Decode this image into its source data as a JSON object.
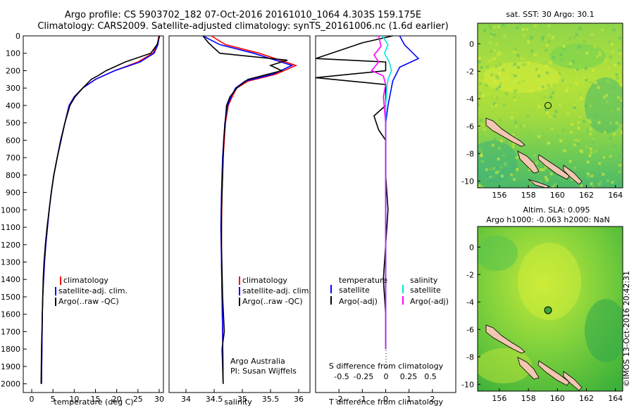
{
  "header": {
    "line1": "Argo profile: CS 5903702_182 07-Oct-2016 20161010_1064 4.303S 159.175E",
    "line2": "Climatology: CARS2009. Satellite-adjusted climatology: synTS_20161006.nc (1.6d earlier)"
  },
  "colors": {
    "climatology": "#ff0000",
    "satellite": "#0000ff",
    "argo": "#000000",
    "salinity_satellite": "#00e5e5",
    "salinity_argo": "#ff00ff"
  },
  "legend_ts": [
    "climatology",
    "satellite-adj. clim.",
    "Argo(..raw -QC)"
  ],
  "legend_diff": {
    "temperature_head": "temperature",
    "salinity_head": "salinity",
    "satellite": "satellite",
    "argo": "Argo(-adj)"
  },
  "credits": {
    "line1": "Argo Australia",
    "line2": "PI: Susan Wijffels"
  },
  "diff_top_label": "S difference from climatology",
  "diff_top_ticks": [
    "-0.5",
    "-0.25",
    "0",
    "0.25",
    "0.5"
  ],
  "map_sst": {
    "title": "sat. SST: 30 Argo: 30.1"
  },
  "map_sla": {
    "title_line1": "Altim. SLA: 0.095",
    "title_line2": "Argo h1000: -0.063 h2000: NaN"
  },
  "imos": "©IMOS 13-Oct-2016 20:42:31",
  "chart_data": [
    {
      "type": "line",
      "xlabel": "temperature (deg C)",
      "ylabel": "",
      "xlim": [
        -2,
        31
      ],
      "ylim": [
        2050,
        0
      ],
      "xticks": [
        0,
        5,
        10,
        15,
        20,
        25,
        30
      ],
      "yticks": [
        0,
        100,
        200,
        300,
        400,
        500,
        600,
        700,
        800,
        900,
        1000,
        1100,
        1200,
        1300,
        1400,
        1500,
        1600,
        1700,
        1800,
        1900,
        2000
      ],
      "series": [
        {
          "name": "climatology",
          "x": [
            29.9,
            29.6,
            28.5,
            25.0,
            19.5,
            15.0,
            12.0,
            10.0,
            8.8,
            7.8,
            6.8,
            6.0,
            5.2,
            4.6,
            4.1,
            3.7,
            3.3,
            3.0,
            2.8,
            2.6,
            2.5,
            2.4,
            2.3
          ],
          "y": [
            0,
            50,
            100,
            150,
            200,
            250,
            300,
            350,
            400,
            500,
            600,
            700,
            800,
            900,
            1000,
            1100,
            1200,
            1300,
            1400,
            1500,
            1600,
            1800,
            2000
          ]
        },
        {
          "name": "satellite-adj. clim.",
          "x": [
            30.0,
            29.7,
            28.8,
            25.5,
            19.5,
            15.0,
            12.0,
            10.0,
            8.8,
            7.8,
            6.8,
            6.0,
            5.2,
            4.6,
            4.1,
            3.7,
            3.3,
            3.0,
            2.8,
            2.6,
            2.5,
            2.4,
            2.3
          ],
          "y": [
            0,
            50,
            100,
            150,
            200,
            250,
            300,
            350,
            400,
            500,
            600,
            700,
            800,
            900,
            1000,
            1100,
            1200,
            1300,
            1400,
            1500,
            1600,
            1800,
            2000
          ]
        },
        {
          "name": "Argo(..raw -QC)",
          "x": [
            30.1,
            29.5,
            28.0,
            22.0,
            17.5,
            15.5,
            14.0,
            12.0,
            10.2,
            9.0,
            7.8,
            6.9,
            6.0,
            5.2,
            4.6,
            4.1,
            3.6,
            3.2,
            2.9,
            2.7,
            2.5,
            2.3,
            2.2
          ],
          "y": [
            0,
            50,
            100,
            150,
            200,
            230,
            250,
            300,
            350,
            400,
            500,
            600,
            700,
            800,
            900,
            1000,
            1100,
            1200,
            1300,
            1400,
            1600,
            1800,
            2000
          ]
        }
      ]
    },
    {
      "type": "line",
      "xlabel": "salinity",
      "ylabel": "",
      "xlim": [
        33.7,
        36.2
      ],
      "ylim": [
        2050,
        0
      ],
      "xticks": [
        34,
        34.5,
        35,
        35.5,
        36
      ],
      "series": [
        {
          "name": "climatology",
          "x": [
            34.45,
            34.7,
            35.3,
            35.95,
            35.6,
            35.1,
            34.9,
            34.82,
            34.75,
            34.7,
            34.66,
            34.64,
            34.63,
            34.63,
            34.64,
            34.65,
            34.66
          ],
          "y": [
            0,
            50,
            100,
            170,
            220,
            260,
            300,
            350,
            400,
            500,
            700,
            900,
            1100,
            1300,
            1500,
            1700,
            2000
          ]
        },
        {
          "name": "satellite-adj. clim.",
          "x": [
            34.3,
            34.6,
            35.2,
            35.88,
            35.55,
            35.05,
            34.88,
            34.8,
            34.74,
            34.69,
            34.65,
            34.63,
            34.62,
            34.63,
            34.64,
            34.65,
            34.66
          ],
          "y": [
            0,
            50,
            100,
            170,
            220,
            260,
            300,
            350,
            400,
            500,
            700,
            900,
            1100,
            1300,
            1500,
            1700,
            2000
          ]
        },
        {
          "name": "Argo(..raw -QC)",
          "x": [
            34.3,
            34.4,
            34.6,
            35.8,
            35.5,
            35.7,
            35.1,
            34.9,
            34.78,
            34.72,
            34.67,
            34.65,
            34.63,
            34.63,
            34.65,
            34.68,
            34.64,
            34.66
          ],
          "y": [
            0,
            40,
            100,
            140,
            170,
            200,
            250,
            300,
            350,
            400,
            600,
            800,
            1000,
            1200,
            1500,
            1700,
            1800,
            2000
          ]
        }
      ]
    },
    {
      "type": "line",
      "xlabel": "T difference from climatology",
      "ylabel": "",
      "xlim": [
        -3,
        3
      ],
      "ylim": [
        2050,
        0
      ],
      "xticks": [
        -2,
        -1,
        0,
        1,
        2
      ],
      "series": [
        {
          "name": "temperature satellite",
          "x": [
            0.6,
            0.8,
            1.4,
            0.6,
            0.3,
            0.1,
            0.0,
            0.0,
            0.0,
            0.0,
            0.0,
            0.0,
            0.0,
            0.0
          ],
          "y": [
            0,
            50,
            130,
            180,
            260,
            400,
            500,
            700,
            900,
            1100,
            1300,
            1500,
            1700,
            1800
          ]
        },
        {
          "name": "temperature Argo(-adj)",
          "x": [
            0.3,
            -1.0,
            -3.0,
            0.0,
            0.0,
            -3.0,
            0.0,
            0.0,
            -0.5,
            -0.3,
            0.0,
            0.0,
            0.1,
            0.0,
            -0.1,
            0.0,
            0.0,
            0.0
          ],
          "y": [
            0,
            40,
            130,
            150,
            200,
            240,
            280,
            400,
            460,
            540,
            600,
            800,
            1000,
            1200,
            1400,
            1600,
            1700,
            1800
          ]
        },
        {
          "name": "salinity satellite",
          "x": [
            -0.15,
            0.1,
            -0.05,
            0.15,
            0.25,
            0.1,
            0.05,
            0.0,
            0.0,
            0.0,
            0.0,
            0.0,
            0.0,
            0.0
          ],
          "y": [
            0,
            50,
            100,
            150,
            200,
            250,
            300,
            400,
            600,
            900,
            1200,
            1500,
            1700,
            1800
          ]
        },
        {
          "name": "salinity Argo(-adj)",
          "x": [
            -0.3,
            -0.2,
            -0.5,
            -0.3,
            -0.6,
            -0.1,
            0.0,
            -0.1,
            0.0,
            0.0,
            0.0,
            0.0,
            0.0
          ],
          "y": [
            0,
            60,
            110,
            150,
            200,
            230,
            280,
            350,
            500,
            800,
            1100,
            1500,
            1800
          ]
        }
      ]
    },
    {
      "type": "heatmap",
      "title": "sat. SST: 30 Argo: 30.1",
      "xlim": [
        154.5,
        164.5
      ],
      "ylim": [
        -10.5,
        1.5
      ],
      "xticks": [
        156,
        158,
        160,
        162,
        164
      ],
      "yticks": [
        0,
        -2,
        -4,
        -6,
        -8,
        -10
      ],
      "argo_position": {
        "lon": 159.175,
        "lat": -4.303
      }
    },
    {
      "type": "heatmap",
      "title": "Altim. SLA: 0.095",
      "xlim": [
        154.5,
        164.5
      ],
      "ylim": [
        -10.5,
        1.5
      ],
      "xticks": [
        156,
        158,
        160,
        162,
        164
      ],
      "yticks": [
        0,
        -2,
        -4,
        -6,
        -8,
        -10
      ],
      "argo_position": {
        "lon": 159.175,
        "lat": -4.303
      }
    }
  ]
}
